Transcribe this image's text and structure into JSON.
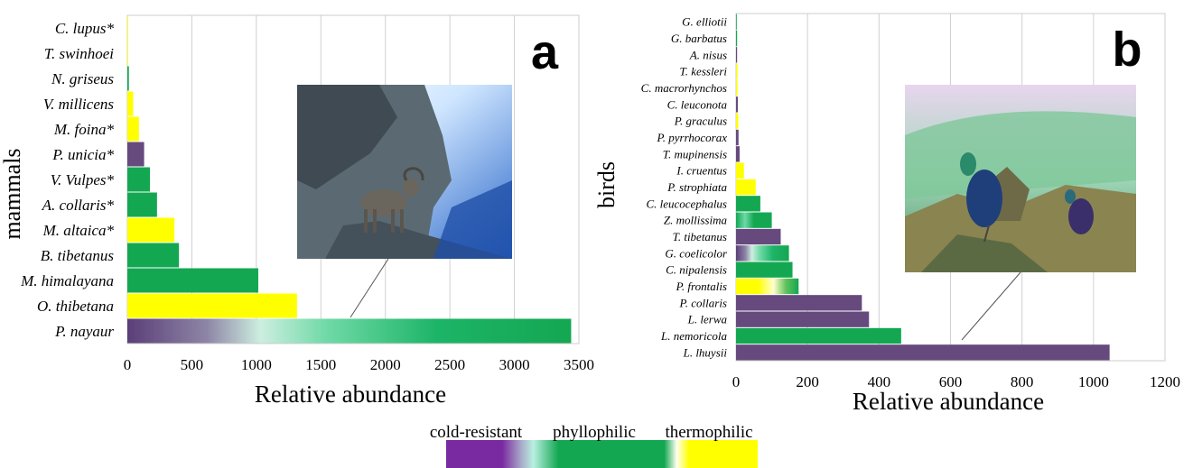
{
  "chart_data": [
    {
      "type": "bar",
      "orientation": "horizontal",
      "panel_letter": "a",
      "ylabel": "mammals",
      "xlabel": "Relative abundance",
      "xlim": [
        0,
        3500
      ],
      "xticks": [
        "0",
        "500",
        "1000",
        "1500",
        "2000",
        "2500",
        "3000",
        "3500"
      ],
      "grid": true,
      "categories": [
        "C. lupus*",
        "T. swinhoei",
        "N. griseus",
        "V. millicens",
        "M. foina*",
        "P. unicia*",
        "V. Vulpes*",
        "A. collaris*",
        "M. altaica*",
        "B. tibetanus",
        "M. himalayana",
        "O. thibetana",
        "P. nayaur"
      ],
      "values": [
        3,
        5,
        12,
        45,
        90,
        130,
        175,
        230,
        365,
        400,
        1015,
        1315,
        3440
      ],
      "bar_styles": [
        "thermophilic",
        "thermophilic",
        "phyllophilic",
        "thermophilic",
        "thermophilic",
        "cold-resistant",
        "phyllophilic",
        "phyllophilic",
        "thermophilic",
        "phyllophilic",
        "phyllophilic",
        "thermophilic",
        "gradient-cold-to-phyllo"
      ],
      "inset_photo": "blue-sheep-on-cliff"
    },
    {
      "type": "bar",
      "orientation": "horizontal",
      "panel_letter": "b",
      "ylabel": "birds",
      "xlabel": "Relative abundance",
      "xlim": [
        0,
        1200
      ],
      "xticks": [
        "0",
        "200",
        "400",
        "600",
        "800",
        "1000",
        "1200"
      ],
      "grid": true,
      "categories": [
        "G. elliotii",
        "G. barbatus",
        "A. nisus",
        "T. kessleri",
        "C. macrorhynchos",
        "C. leuconota",
        "P. graculus",
        "P. pyrrhocorax",
        "T. mupinensis",
        "I. cruentus",
        "P. strophiata",
        "C. leucocephalus",
        "Z. mollissima",
        "T. tibetanus",
        "G. coelicolor",
        "C. nipalensis",
        "P. frontalis",
        "P. collaris",
        "L. lerwa",
        "L. nemoricola",
        "L. lhuysii"
      ],
      "values": [
        2,
        3,
        3,
        4,
        4,
        5,
        6,
        7,
        10,
        22,
        55,
        68,
        100,
        125,
        148,
        158,
        175,
        352,
        372,
        462,
        1045
      ],
      "bar_styles": [
        "phyllophilic",
        "phyllophilic",
        "cold-resistant",
        "thermophilic",
        "thermophilic",
        "cold-resistant",
        "thermophilic",
        "cold-resistant",
        "cold-resistant",
        "thermophilic",
        "thermophilic",
        "phyllophilic",
        "gradient-phyllo",
        "cold-resistant",
        "gradient-cold-to-phyllo",
        "phyllophilic",
        "gradient-thermo",
        "cold-resistant",
        "cold-resistant",
        "phyllophilic",
        "cold-resistant"
      ],
      "inset_photo": "monal-pheasants-on-rocks"
    }
  ],
  "legend": {
    "labels": [
      "cold-resistant",
      "phyllophilic",
      "thermophilic"
    ]
  },
  "colors": {
    "cold-resistant": "#664a7e",
    "phyllophilic": "#14a752",
    "thermophilic": "#ffff00",
    "legend_purple": "#7a2aa0",
    "grid": "#d0d0d0"
  }
}
